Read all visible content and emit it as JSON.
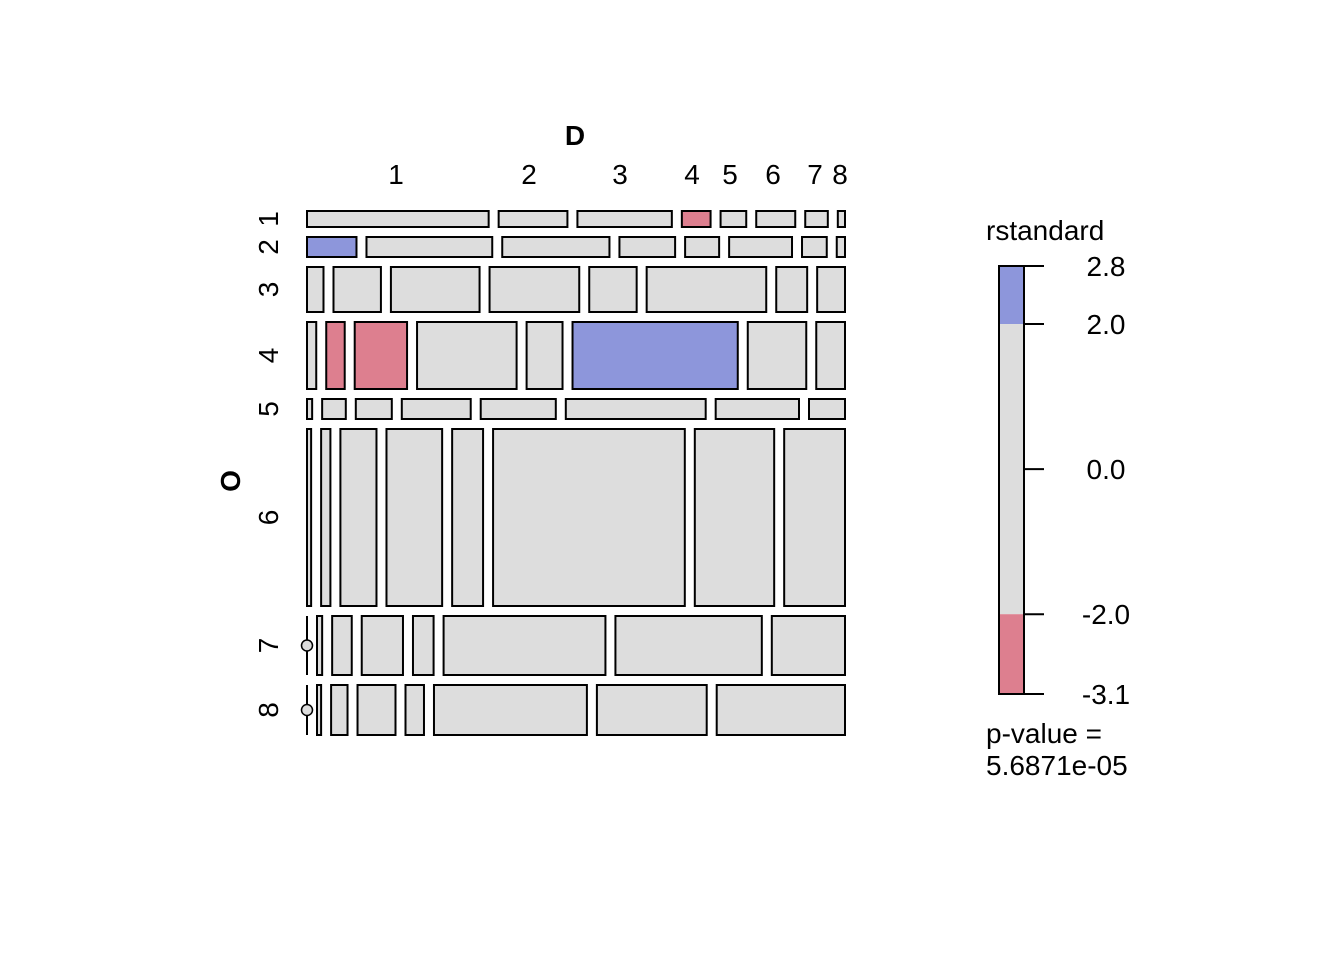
{
  "chart_data": {
    "type": "mosaic",
    "column_variable": "D",
    "row_variable": "O",
    "column_levels": [
      "1",
      "2",
      "3",
      "4",
      "5",
      "6",
      "7",
      "8"
    ],
    "row_levels": [
      "1",
      "2",
      "3",
      "4",
      "5",
      "6",
      "7",
      "8"
    ],
    "residual_colors": {
      "positive": "#8d96db",
      "neutral": "#dddddd",
      "negative": "#dd7f8f"
    },
    "rows": [
      {
        "label": "1",
        "cells": [
          {
            "col": "1",
            "width": 177,
            "residual": "neutral"
          },
          {
            "col": "2",
            "width": 67,
            "residual": "neutral"
          },
          {
            "col": "3",
            "width": 92,
            "residual": "neutral"
          },
          {
            "col": "4",
            "width": 28,
            "residual": "negative"
          },
          {
            "col": "5",
            "width": 25,
            "residual": "neutral"
          },
          {
            "col": "6",
            "width": 38,
            "residual": "neutral"
          },
          {
            "col": "7",
            "width": 22,
            "residual": "neutral"
          },
          {
            "col": "8",
            "width": 7,
            "residual": "neutral"
          }
        ]
      },
      {
        "label": "2",
        "cells": [
          {
            "col": "1",
            "width": 48,
            "residual": "positive"
          },
          {
            "col": "2",
            "width": 122,
            "residual": "neutral"
          },
          {
            "col": "3",
            "width": 104,
            "residual": "neutral"
          },
          {
            "col": "4",
            "width": 54,
            "residual": "neutral"
          },
          {
            "col": "5",
            "width": 33,
            "residual": "neutral"
          },
          {
            "col": "6",
            "width": 61,
            "residual": "neutral"
          },
          {
            "col": "7",
            "width": 24,
            "residual": "neutral"
          },
          {
            "col": "8",
            "width": 8,
            "residual": "neutral"
          }
        ]
      },
      {
        "label": "3",
        "cells": [
          {
            "col": "1",
            "width": 16,
            "residual": "neutral"
          },
          {
            "col": "2",
            "width": 46,
            "residual": "neutral"
          },
          {
            "col": "3",
            "width": 86,
            "residual": "neutral"
          },
          {
            "col": "4",
            "width": 87,
            "residual": "neutral"
          },
          {
            "col": "5",
            "width": 46,
            "residual": "neutral"
          },
          {
            "col": "6",
            "width": 116,
            "residual": "neutral"
          },
          {
            "col": "7",
            "width": 30,
            "residual": "neutral"
          },
          {
            "col": "8",
            "width": 27,
            "residual": "neutral"
          }
        ]
      },
      {
        "label": "4",
        "cells": [
          {
            "col": "1",
            "width": 9,
            "residual": "neutral"
          },
          {
            "col": "2",
            "width": 18,
            "residual": "negative"
          },
          {
            "col": "3",
            "width": 51,
            "residual": "negative"
          },
          {
            "col": "4",
            "width": 97,
            "residual": "neutral"
          },
          {
            "col": "5",
            "width": 35,
            "residual": "neutral"
          },
          {
            "col": "6",
            "width": 161,
            "residual": "positive"
          },
          {
            "col": "7",
            "width": 57,
            "residual": "neutral"
          },
          {
            "col": "8",
            "width": 28,
            "residual": "neutral"
          }
        ]
      },
      {
        "label": "5",
        "cells": [
          {
            "col": "1",
            "width": 5,
            "residual": "neutral"
          },
          {
            "col": "2",
            "width": 23,
            "residual": "neutral"
          },
          {
            "col": "3",
            "width": 35,
            "residual": "neutral"
          },
          {
            "col": "4",
            "width": 67,
            "residual": "neutral"
          },
          {
            "col": "5",
            "width": 73,
            "residual": "neutral"
          },
          {
            "col": "6",
            "width": 136,
            "residual": "neutral"
          },
          {
            "col": "7",
            "width": 81,
            "residual": "neutral"
          },
          {
            "col": "8",
            "width": 35,
            "residual": "neutral"
          }
        ]
      },
      {
        "label": "6",
        "cells": [
          {
            "col": "1",
            "width": 4,
            "residual": "neutral"
          },
          {
            "col": "2",
            "width": 9,
            "residual": "neutral"
          },
          {
            "col": "3",
            "width": 35,
            "residual": "neutral"
          },
          {
            "col": "4",
            "width": 54,
            "residual": "neutral"
          },
          {
            "col": "5",
            "width": 30,
            "residual": "neutral"
          },
          {
            "col": "6",
            "width": 186,
            "residual": "neutral"
          },
          {
            "col": "7",
            "width": 77,
            "residual": "neutral"
          },
          {
            "col": "8",
            "width": 59,
            "residual": "neutral"
          }
        ]
      },
      {
        "label": "7",
        "cells": [
          {
            "col": "1",
            "width": 0,
            "residual": "neutral"
          },
          {
            "col": "2",
            "width": 5,
            "residual": "neutral"
          },
          {
            "col": "3",
            "width": 19,
            "residual": "neutral"
          },
          {
            "col": "4",
            "width": 40,
            "residual": "neutral"
          },
          {
            "col": "5",
            "width": 20,
            "residual": "neutral"
          },
          {
            "col": "6",
            "width": 157,
            "residual": "neutral"
          },
          {
            "col": "7",
            "width": 142,
            "residual": "neutral"
          },
          {
            "col": "8",
            "width": 71,
            "residual": "neutral"
          }
        ]
      },
      {
        "label": "8",
        "cells": [
          {
            "col": "1",
            "width": 0,
            "residual": "neutral"
          },
          {
            "col": "2",
            "width": 4,
            "residual": "neutral"
          },
          {
            "col": "3",
            "width": 16,
            "residual": "neutral"
          },
          {
            "col": "4",
            "width": 37,
            "residual": "neutral"
          },
          {
            "col": "5",
            "width": 18,
            "residual": "neutral"
          },
          {
            "col": "6",
            "width": 149,
            "residual": "neutral"
          },
          {
            "col": "7",
            "width": 107,
            "residual": "neutral"
          },
          {
            "col": "8",
            "width": 125,
            "residual": "neutral"
          }
        ]
      }
    ],
    "row_heights": [
      16,
      20,
      45,
      67,
      20,
      177,
      59,
      50
    ],
    "legend": {
      "title": "rstandard",
      "range": [
        -3.1,
        2.8
      ],
      "breaks": [
        -3.1,
        -2.0,
        2.0,
        2.8
      ],
      "tick_labels": [
        "2.8",
        "2.0",
        "0.0",
        "-2.0",
        "-3.1"
      ],
      "tick_values": [
        2.8,
        2.0,
        0.0,
        -2.0,
        -3.1
      ],
      "bands": [
        {
          "from": 2.0,
          "to": 2.8,
          "residual": "positive"
        },
        {
          "from": -2.0,
          "to": 2.0,
          "residual": "neutral"
        },
        {
          "from": -3.1,
          "to": -2.0,
          "residual": "negative"
        }
      ]
    },
    "p_value_label": "p-value =",
    "p_value": "5.6871e-05"
  }
}
